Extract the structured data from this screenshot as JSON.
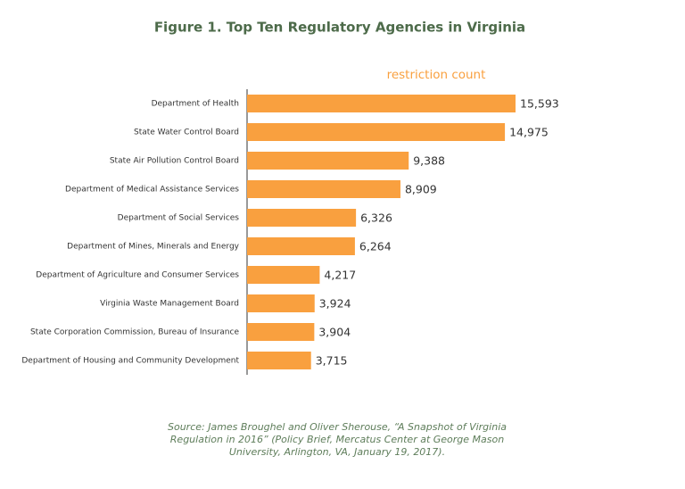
{
  "chart_data": {
    "type": "bar",
    "orientation": "horizontal",
    "title": "Figure 1. Top Ten Regulatory Agencies in Virginia",
    "categories": [
      "Department of Health",
      "State Water Control Board",
      "State Air Pollution Control Board",
      "Department of Medical Assistance Services",
      "Department of Social Services",
      "Department of Mines, Minerals and Energy",
      "Department of Agriculture and Consumer Services",
      "Virginia Waste Management Board",
      "State Corporation Commission, Bureau of Insurance",
      "Department of Housing and Community Development"
    ],
    "series": [
      {
        "name": "restriction count",
        "color": "#f9a03f",
        "values": [
          15593,
          14975,
          9388,
          8909,
          6326,
          6264,
          4217,
          3924,
          3904,
          3715
        ],
        "value_labels": [
          "15,593",
          "14,975",
          "9,388",
          "8,909",
          "6,326",
          "6,264",
          "4,217",
          "3,924",
          "3,904",
          "3,715"
        ]
      }
    ],
    "source_lines": [
      "Source: James Broughel and Oliver Sherouse, “A Snapshot of Virginia",
      "Regulation in 2016” (Policy Brief, Mercatus Center at George Mason",
      "University, Arlington, VA, January 19, 2017)."
    ]
  }
}
